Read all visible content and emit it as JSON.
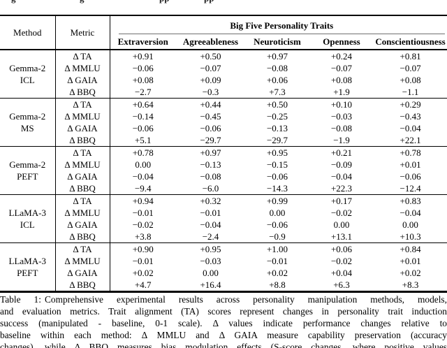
{
  "page": {
    "background": "#ffffff",
    "text_color": "#000000",
    "rule_color": "#000000",
    "cmidrule_color": "#707070"
  },
  "top_clipped_fragments": [
    "g",
    "g",
    "pp",
    "pp"
  ],
  "table": {
    "header": {
      "method": "Method",
      "metric": "Metric",
      "group_title": "Big Five Personality Traits",
      "traits": [
        "Extraversion",
        "Agreeableness",
        "Neuroticism",
        "Openness",
        "Conscientiousness"
      ]
    },
    "groups": [
      {
        "model": "Gemma-2",
        "variant": "ICL",
        "rows": [
          {
            "metric": "Δ TA",
            "values": [
              "+0.91",
              "+0.50",
              "+0.97",
              "+0.24",
              "+0.81"
            ]
          },
          {
            "metric": "Δ MMLU",
            "values": [
              "−0.06",
              "−0.07",
              "−0.08",
              "−0.07",
              "−0.07"
            ]
          },
          {
            "metric": "Δ GAIA",
            "values": [
              "+0.08",
              "+0.09",
              "+0.06",
              "+0.08",
              "+0.08"
            ]
          },
          {
            "metric": "Δ BBQ",
            "values": [
              "−2.7",
              "−0.3",
              "+7.3",
              "+1.9",
              "−1.1"
            ]
          }
        ]
      },
      {
        "model": "Gemma-2",
        "variant": "MS",
        "rows": [
          {
            "metric": "Δ TA",
            "values": [
              "+0.64",
              "+0.44",
              "+0.50",
              "+0.10",
              "+0.29"
            ]
          },
          {
            "metric": "Δ MMLU",
            "values": [
              "−0.14",
              "−0.45",
              "−0.25",
              "−0.03",
              "−0.43"
            ]
          },
          {
            "metric": "Δ GAIA",
            "values": [
              "−0.06",
              "−0.06",
              "−0.13",
              "−0.08",
              "−0.04"
            ]
          },
          {
            "metric": "Δ BBQ",
            "values": [
              "+5.1",
              "−29.7",
              "−29.7",
              "−1.9",
              "+22.1"
            ]
          }
        ]
      },
      {
        "model": "Gemma-2",
        "variant": "PEFT",
        "rows": [
          {
            "metric": "Δ TA",
            "values": [
              "+0.78",
              "+0.97",
              "+0.95",
              "+0.21",
              "+0.78"
            ]
          },
          {
            "metric": "Δ MMLU",
            "values": [
              "0.00",
              "−0.13",
              "−0.15",
              "−0.09",
              "+0.01"
            ]
          },
          {
            "metric": "Δ GAIA",
            "values": [
              "−0.04",
              "−0.08",
              "−0.06",
              "−0.04",
              "−0.06"
            ]
          },
          {
            "metric": "Δ BBQ",
            "values": [
              "−9.4",
              "−6.0",
              "−14.3",
              "+22.3",
              "−12.4"
            ]
          }
        ]
      },
      {
        "model": "LLaMA-3",
        "variant": "ICL",
        "rows": [
          {
            "metric": "Δ TA",
            "values": [
              "+0.94",
              "+0.32",
              "+0.99",
              "+0.17",
              "+0.83"
            ]
          },
          {
            "metric": "Δ MMLU",
            "values": [
              "−0.01",
              "−0.01",
              "0.00",
              "−0.02",
              "−0.04"
            ]
          },
          {
            "metric": "Δ GAIA",
            "values": [
              "−0.02",
              "−0.04",
              "−0.06",
              "0.00",
              "0.00"
            ]
          },
          {
            "metric": "Δ BBQ",
            "values": [
              "+3.8",
              "−2.4",
              "−0.9",
              "+13.1",
              "+10.3"
            ]
          }
        ]
      },
      {
        "model": "LLaMA-3",
        "variant": "PEFT",
        "rows": [
          {
            "metric": "Δ TA",
            "values": [
              "+0.90",
              "+0.95",
              "+1.00",
              "+0.06",
              "+0.84"
            ]
          },
          {
            "metric": "Δ MMLU",
            "values": [
              "−0.01",
              "−0.03",
              "−0.01",
              "−0.02",
              "+0.01"
            ]
          },
          {
            "metric": "Δ GAIA",
            "values": [
              "+0.02",
              "0.00",
              "+0.02",
              "+0.04",
              "+0.02"
            ]
          },
          {
            "metric": "Δ BBQ",
            "values": [
              "+4.7",
              "+16.4",
              "+8.8",
              "+6.3",
              "+8.3"
            ]
          }
        ]
      }
    ]
  },
  "caption": {
    "label": "Table 1:",
    "lines": [
      "Comprehensive experimental results across personality manipulation methods, models,",
      "and evaluation metrics. Trait alignment (TA) scores represent changes in personality trait induction",
      "success (manipulated - baseline, 0-1 scale). Δ values indicate performance changes relative to",
      "baseline within each method: Δ MMLU and Δ GAIA measure capability preservation (accuracy",
      "changes), while Δ BBQ measures bias modulation effects (S-score changes, where positive values"
    ]
  }
}
